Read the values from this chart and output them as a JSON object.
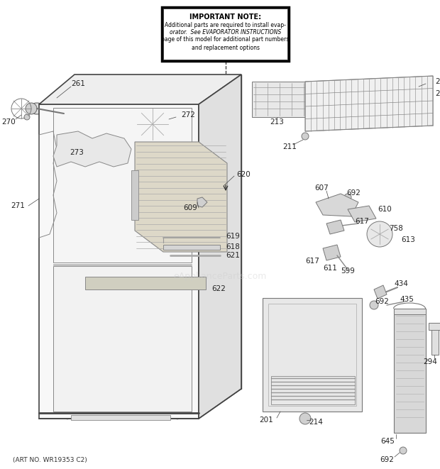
{
  "background_color": "#ffffff",
  "fig_width": 6.2,
  "fig_height": 6.61,
  "dpi": 100,
  "important_note": {
    "title": "IMPORTANT NOTE:",
    "line1": "Additional parts are required to install evap-",
    "line2": "orator.  See ",
    "line2b": "EVAPORATOR INSTRUCTIONS",
    "line3": "page of this model for additional part numbers",
    "line4": "and replacement options"
  },
  "footer_text": "(ART NO. WR19353 C2)",
  "watermark": "eApplianceParts.com"
}
